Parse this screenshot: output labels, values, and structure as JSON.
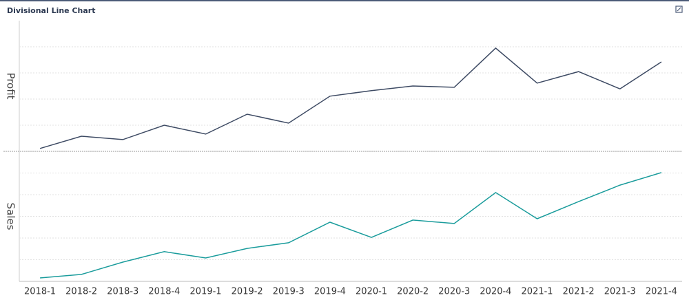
{
  "title": "Divisional Line Chart",
  "chart_data": {
    "type": "line",
    "categories": [
      "2018-1",
      "2018-2",
      "2018-3",
      "2018-4",
      "2019-1",
      "2019-2",
      "2019-3",
      "2019-4",
      "2020-1",
      "2020-2",
      "2020-3",
      "2020-4",
      "2021-1",
      "2021-2",
      "2021-3",
      "2021-4"
    ],
    "series": [
      {
        "name": "Profit",
        "color": "#3d4a63",
        "ylim": [
          0,
          50
        ],
        "yticks": [
          10,
          20,
          30,
          40
        ],
        "values": [
          1.1,
          5.8,
          4.5,
          10.0,
          6.6,
          14.2,
          10.8,
          21.1,
          23.2,
          25.0,
          24.5,
          39.5,
          26.1,
          30.5,
          23.9,
          34.2
        ]
      },
      {
        "name": "Sales",
        "color": "#1a9c9c",
        "ylim": [
          0,
          60
        ],
        "yticks": [
          10,
          20,
          30,
          40,
          50
        ],
        "values": [
          1.6,
          3.2,
          8.9,
          13.7,
          10.8,
          15.2,
          17.8,
          27.3,
          20.3,
          28.3,
          26.7,
          41.0,
          28.9,
          36.8,
          44.4,
          50.2
        ]
      }
    ],
    "grid": true
  }
}
